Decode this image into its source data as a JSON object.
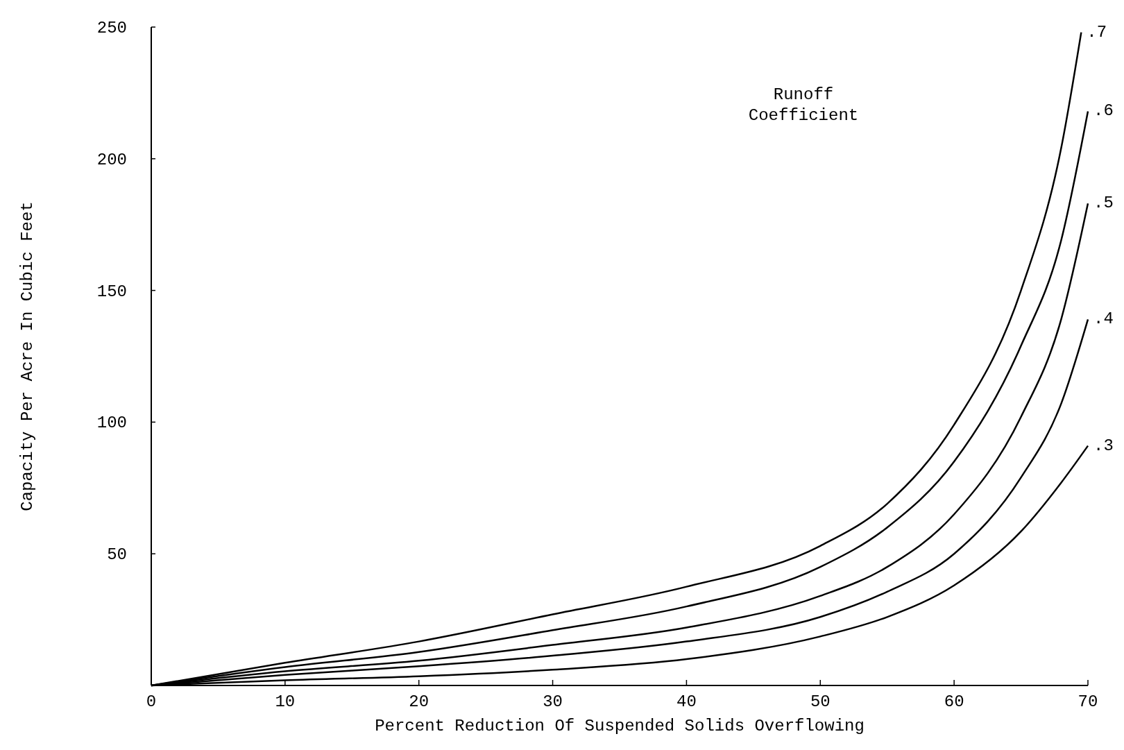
{
  "chart_data": {
    "type": "line",
    "xlabel": "Percent Reduction Of Suspended Solids Overflowing",
    "ylabel": "Capacity Per Acre In Cubic Feet",
    "legend_title": "Runoff Coefficient",
    "x": [
      0,
      10,
      20,
      30,
      40,
      50,
      55,
      60,
      65,
      68,
      70
    ],
    "series": [
      {
        "name": ".7",
        "color": "#000000",
        "x": [
          0,
          10,
          20,
          30,
          40,
          50,
          55,
          60,
          65,
          68,
          69.5
        ],
        "values": [
          0,
          8.6,
          16.7,
          27,
          37.5,
          53,
          69,
          99,
          150,
          204,
          248
        ]
      },
      {
        "name": ".6",
        "color": "#000000",
        "values": [
          0,
          7,
          12.7,
          21,
          30,
          45,
          60,
          85,
          129,
          169,
          218
        ]
      },
      {
        "name": ".5",
        "color": "#000000",
        "values": [
          0,
          5.4,
          9.4,
          15.4,
          22,
          34,
          45,
          65,
          102,
          139,
          183
        ]
      },
      {
        "name": ".4",
        "color": "#000000",
        "values": [
          0,
          4,
          7.3,
          11.3,
          16.7,
          26,
          35.6,
          50,
          79,
          107,
          139
        ]
      },
      {
        "name": ".3",
        "color": "#000000",
        "values": [
          0,
          2,
          3.5,
          6,
          10,
          18.6,
          26,
          38,
          58.5,
          77,
          91
        ]
      }
    ],
    "xlim": [
      0,
      70
    ],
    "ylim": [
      0,
      250
    ],
    "xticks": [
      0,
      10,
      20,
      30,
      40,
      50,
      60,
      70
    ],
    "yticks": [
      50,
      100,
      150,
      200,
      250
    ],
    "grid": false,
    "marker": "none",
    "line_style": "solid"
  }
}
